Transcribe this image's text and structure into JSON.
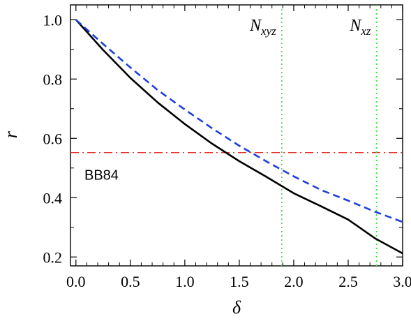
{
  "chart_data": {
    "type": "line",
    "xlabel": "δ",
    "ylabel": "r",
    "xlim": [
      -0.05,
      3.0
    ],
    "ylim": [
      0.17,
      1.05
    ],
    "x_ticks": [
      "0.0",
      "0.5",
      "1.0",
      "1.5",
      "2.0",
      "2.5",
      "3.0"
    ],
    "y_ticks": [
      "0.2",
      "0.4",
      "0.6",
      "0.8",
      "1.0"
    ],
    "grid": false,
    "series": [
      {
        "style": "solid",
        "color": "#000000",
        "x": [
          0.0,
          0.25,
          0.5,
          0.75,
          1.0,
          1.25,
          1.5,
          1.75,
          2.0,
          2.25,
          2.5,
          2.75,
          3.0
        ],
        "y": [
          1.0,
          0.898,
          0.804,
          0.721,
          0.648,
          0.582,
          0.523,
          0.47,
          0.415,
          0.371,
          0.326,
          0.262,
          0.212
        ]
      },
      {
        "style": "dashed",
        "color": "#1f3fe0",
        "x": [
          0.0,
          0.25,
          0.5,
          0.75,
          1.0,
          1.25,
          1.5,
          1.75,
          2.0,
          2.25,
          2.5,
          2.75,
          3.0
        ],
        "y": [
          1.0,
          0.918,
          0.839,
          0.763,
          0.697,
          0.634,
          0.575,
          0.522,
          0.472,
          0.426,
          0.39,
          0.352,
          0.318
        ]
      }
    ],
    "reference_lines": [
      {
        "orientation": "horizontal",
        "value": 0.552,
        "style": "dashdot",
        "color": "#e8332a",
        "label": "BB84"
      },
      {
        "orientation": "vertical",
        "value": 1.89,
        "style": "dotted",
        "color": "#3ddc3d",
        "label_main": "N",
        "label_sub": "xyz"
      },
      {
        "orientation": "vertical",
        "value": 2.76,
        "style": "dotted",
        "color": "#3ddc3d",
        "label_main": "N",
        "label_sub": "xz"
      }
    ]
  }
}
